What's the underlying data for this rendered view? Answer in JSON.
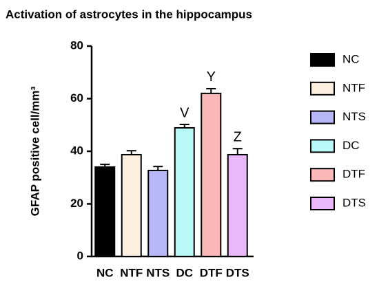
{
  "chart_data": {
    "type": "bar",
    "title": "Activation of astrocytes in the hippocampus",
    "ylabel": "GFAP positive cell/mm³",
    "categories": [
      "NC",
      "NTF",
      "NTS",
      "DC",
      "DTF",
      "DTS"
    ],
    "values": [
      34,
      38.7,
      32.7,
      48.9,
      62,
      38.7
    ],
    "errors": [
      1,
      1.5,
      1.5,
      1.3,
      1.8,
      2.3
    ],
    "annotations": [
      null,
      null,
      null,
      "V",
      "Y",
      "Z"
    ],
    "series_names": [
      "NC",
      "NTF",
      "NTS",
      "DC",
      "DTF",
      "DTS"
    ],
    "colors": [
      "#000000",
      "#fdf0e0",
      "#b8b8f8",
      "#b8f8f8",
      "#fcb8b8",
      "#e8b8f8"
    ],
    "ylim": [
      0,
      80
    ],
    "yticks": [
      0,
      20,
      40,
      60,
      80
    ],
    "legend": "right"
  }
}
